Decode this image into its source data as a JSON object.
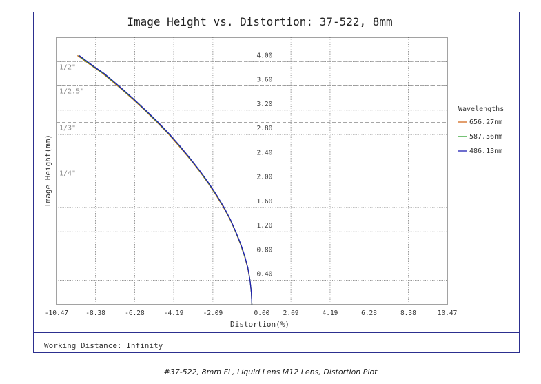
{
  "caption": "#37-522, 8mm FL, Liquid Lens M12 Lens, Distortion Plot",
  "footer": {
    "working_distance": "Working Distance: Infinity"
  },
  "chart_data": {
    "type": "line",
    "title": "Image Height vs. Distortion: 37-522, 8mm",
    "xlabel": "Distortion(%)",
    "ylabel": "Image Height(mm)",
    "xlim": [
      -10.47,
      10.47
    ],
    "ylim": [
      0,
      4.4
    ],
    "x_ticks": [
      "-10.47",
      "-8.38",
      "-6.28",
      "-4.19",
      "-2.09",
      "0.00",
      "2.09",
      "4.19",
      "6.28",
      "8.38",
      "10.47"
    ],
    "y_ticks": [
      "0.40",
      "0.80",
      "1.20",
      "1.60",
      "2.00",
      "2.40",
      "2.80",
      "3.20",
      "3.60",
      "4.00"
    ],
    "grid": true,
    "legend": {
      "title": "Wavelengths",
      "placement": "right"
    },
    "sensor_formats": [
      {
        "label": "1/2\"",
        "height": 4.0
      },
      {
        "label": "1/2.5\"",
        "height": 3.6
      },
      {
        "label": "1/3\"",
        "height": 3.0
      },
      {
        "label": "1/4\"",
        "height": 2.25
      }
    ],
    "series": [
      {
        "name": "656.27nm",
        "color": "#d2691e",
        "x": [
          0,
          -0.03,
          -0.1,
          -0.22,
          -0.4,
          -0.62,
          -0.88,
          -1.17,
          -1.52,
          -1.92,
          -2.35,
          -2.82,
          -3.33,
          -3.88,
          -4.45,
          -5.08,
          -5.75,
          -6.45,
          -7.2,
          -7.98,
          -8.45,
          -9.35
        ],
        "y": [
          0,
          0.2,
          0.4,
          0.6,
          0.8,
          1.0,
          1.2,
          1.4,
          1.6,
          1.8,
          2.0,
          2.2,
          2.4,
          2.6,
          2.8,
          3.0,
          3.2,
          3.4,
          3.6,
          3.8,
          3.9,
          4.1
        ]
      },
      {
        "name": "587.56nm",
        "color": "#2ca02c",
        "x": [
          0,
          -0.03,
          -0.1,
          -0.21,
          -0.39,
          -0.61,
          -0.87,
          -1.16,
          -1.5,
          -1.9,
          -2.33,
          -2.8,
          -3.31,
          -3.85,
          -4.42,
          -5.05,
          -5.72,
          -6.42,
          -7.16,
          -7.94,
          -8.42,
          -9.3
        ],
        "y": [
          0,
          0.2,
          0.4,
          0.6,
          0.8,
          1.0,
          1.2,
          1.4,
          1.6,
          1.8,
          2.0,
          2.2,
          2.4,
          2.6,
          2.8,
          3.0,
          3.2,
          3.4,
          3.6,
          3.8,
          3.9,
          4.1
        ]
      },
      {
        "name": "486.13nm",
        "color": "#1f1fb4",
        "x": [
          0,
          -0.03,
          -0.1,
          -0.21,
          -0.38,
          -0.6,
          -0.86,
          -1.15,
          -1.49,
          -1.88,
          -2.31,
          -2.78,
          -3.29,
          -3.83,
          -4.4,
          -5.02,
          -5.69,
          -6.39,
          -7.13,
          -7.9,
          -8.38,
          -9.25
        ],
        "y": [
          0,
          0.2,
          0.4,
          0.6,
          0.8,
          1.0,
          1.2,
          1.4,
          1.6,
          1.8,
          2.0,
          2.2,
          2.4,
          2.6,
          2.8,
          3.0,
          3.2,
          3.4,
          3.6,
          3.8,
          3.9,
          4.1
        ]
      }
    ]
  }
}
